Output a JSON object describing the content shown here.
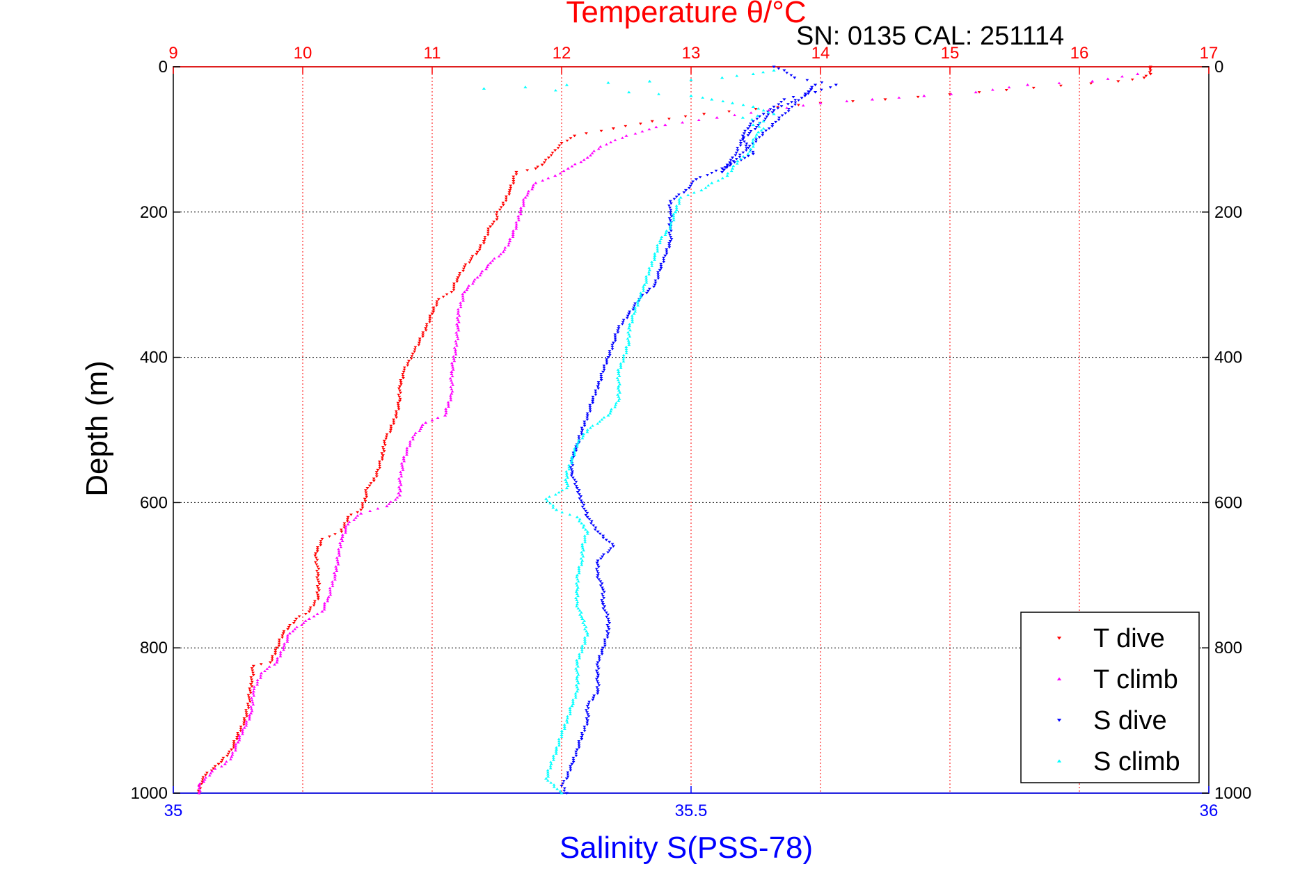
{
  "chart_data": {
    "type": "scatter",
    "title": "Temperature θ/°C",
    "subtitle": "SN: 0135  CAL: 251114",
    "xlabel": "Salinity S(PSS-78)",
    "ylabel": "Depth (m)",
    "y_reversed": true,
    "ylim": [
      0,
      1000
    ],
    "yticks": [
      "0",
      "200",
      "400",
      "600",
      "800",
      "1000"
    ],
    "x_top": {
      "label": "Temperature θ/°C",
      "lim": [
        9,
        17
      ],
      "ticks": [
        "9",
        "10",
        "11",
        "12",
        "13",
        "14",
        "15",
        "16",
        "17"
      ],
      "color": "#ff0000"
    },
    "x_bottom": {
      "label": "Salinity S(PSS-78)",
      "lim": [
        35,
        36
      ],
      "ticks": [
        "35",
        "35.5",
        "36"
      ],
      "color": "#0000ff"
    },
    "grid": true,
    "legend_position": "bottom-right",
    "series": [
      {
        "name": "T dive",
        "axis": "top",
        "color": "#ff0000",
        "marker": "triangle-down",
        "points": [
          [
            16.55,
            0
          ],
          [
            16.55,
            5
          ],
          [
            16.55,
            10
          ],
          [
            16.5,
            15
          ],
          [
            16.3,
            20
          ],
          [
            15.0,
            38
          ],
          [
            14.5,
            45
          ],
          [
            14.0,
            50
          ],
          [
            13.5,
            58
          ],
          [
            13.1,
            65
          ],
          [
            12.7,
            75
          ],
          [
            12.4,
            85
          ],
          [
            12.1,
            95
          ],
          [
            12.0,
            105
          ],
          [
            11.95,
            115
          ],
          [
            11.9,
            125
          ],
          [
            11.85,
            135
          ],
          [
            11.8,
            140
          ],
          [
            11.65,
            145
          ],
          [
            11.6,
            170
          ],
          [
            11.55,
            190
          ],
          [
            11.5,
            200
          ],
          [
            11.5,
            210
          ],
          [
            11.45,
            220
          ],
          [
            11.4,
            240
          ],
          [
            11.35,
            255
          ],
          [
            11.25,
            275
          ],
          [
            11.2,
            290
          ],
          [
            11.15,
            310
          ],
          [
            11.05,
            320
          ],
          [
            11.0,
            340
          ],
          [
            10.95,
            360
          ],
          [
            10.9,
            380
          ],
          [
            10.85,
            395
          ],
          [
            10.82,
            405
          ],
          [
            10.78,
            420
          ],
          [
            10.75,
            440
          ],
          [
            10.75,
            460
          ],
          [
            10.72,
            480
          ],
          [
            10.68,
            500
          ],
          [
            10.63,
            515
          ],
          [
            10.62,
            535
          ],
          [
            10.58,
            555
          ],
          [
            10.55,
            570
          ],
          [
            10.5,
            580
          ],
          [
            10.48,
            595
          ],
          [
            10.45,
            610
          ],
          [
            10.35,
            620
          ],
          [
            10.3,
            640
          ],
          [
            10.15,
            650
          ],
          [
            10.1,
            670
          ],
          [
            10.12,
            700
          ],
          [
            10.12,
            730
          ],
          [
            10.05,
            750
          ],
          [
            9.95,
            760
          ],
          [
            9.85,
            780
          ],
          [
            9.8,
            800
          ],
          [
            9.75,
            820
          ],
          [
            9.62,
            825
          ],
          [
            9.6,
            850
          ],
          [
            9.58,
            880
          ],
          [
            9.55,
            900
          ],
          [
            9.5,
            920
          ],
          [
            9.45,
            940
          ],
          [
            9.35,
            960
          ],
          [
            9.25,
            975
          ],
          [
            9.2,
            990
          ],
          [
            9.2,
            1000
          ]
        ]
      },
      {
        "name": "T climb",
        "axis": "top",
        "color": "#ff00ff",
        "marker": "triangle-up",
        "points": [
          [
            16.45,
            10
          ],
          [
            16.1,
            20
          ],
          [
            15.6,
            25
          ],
          [
            15.2,
            35
          ],
          [
            14.8,
            40
          ],
          [
            14.4,
            45
          ],
          [
            14.0,
            50
          ],
          [
            13.6,
            60
          ],
          [
            13.2,
            70
          ],
          [
            12.8,
            80
          ],
          [
            12.5,
            95
          ],
          [
            12.3,
            110
          ],
          [
            12.2,
            125
          ],
          [
            12.05,
            140
          ],
          [
            11.95,
            150
          ],
          [
            11.8,
            160
          ],
          [
            11.72,
            180
          ],
          [
            11.68,
            200
          ],
          [
            11.65,
            220
          ],
          [
            11.6,
            240
          ],
          [
            11.55,
            255
          ],
          [
            11.45,
            270
          ],
          [
            11.35,
            290
          ],
          [
            11.25,
            310
          ],
          [
            11.2,
            340
          ],
          [
            11.2,
            360
          ],
          [
            11.18,
            390
          ],
          [
            11.15,
            420
          ],
          [
            11.15,
            450
          ],
          [
            11.1,
            480
          ],
          [
            10.95,
            490
          ],
          [
            10.85,
            510
          ],
          [
            10.78,
            540
          ],
          [
            10.75,
            570
          ],
          [
            10.75,
            590
          ],
          [
            10.65,
            605
          ],
          [
            10.45,
            615
          ],
          [
            10.35,
            630
          ],
          [
            10.3,
            650
          ],
          [
            10.28,
            670
          ],
          [
            10.25,
            700
          ],
          [
            10.2,
            730
          ],
          [
            10.15,
            750
          ],
          [
            10.05,
            760
          ],
          [
            9.9,
            780
          ],
          [
            9.85,
            800
          ],
          [
            9.8,
            820
          ],
          [
            9.68,
            835
          ],
          [
            9.62,
            860
          ],
          [
            9.6,
            890
          ],
          [
            9.55,
            910
          ],
          [
            9.5,
            930
          ],
          [
            9.45,
            950
          ],
          [
            9.4,
            960
          ],
          [
            9.3,
            970
          ],
          [
            9.2,
            990
          ],
          [
            9.2,
            1000
          ]
        ]
      },
      {
        "name": "S dive",
        "axis": "bottom",
        "color": "#0000ff",
        "marker": "triangle-down",
        "points": [
          [
            35.58,
            0
          ],
          [
            35.59,
            5
          ],
          [
            35.6,
            15
          ],
          [
            35.64,
            25
          ],
          [
            35.62,
            35
          ],
          [
            35.59,
            45
          ],
          [
            35.58,
            55
          ],
          [
            35.57,
            65
          ],
          [
            35.56,
            75
          ],
          [
            35.555,
            85
          ],
          [
            35.55,
            95
          ],
          [
            35.548,
            105
          ],
          [
            35.545,
            115
          ],
          [
            35.54,
            125
          ],
          [
            35.535,
            135
          ],
          [
            35.53,
            145
          ],
          [
            35.62,
            25
          ],
          [
            35.61,
            40
          ],
          [
            35.58,
            60
          ],
          [
            35.565,
            80
          ],
          [
            35.55,
            100
          ],
          [
            35.56,
            120
          ],
          [
            35.53,
            140
          ],
          [
            35.505,
            155
          ],
          [
            35.495,
            170
          ],
          [
            35.48,
            185
          ],
          [
            35.48,
            200
          ],
          [
            35.48,
            220
          ],
          [
            35.48,
            240
          ],
          [
            35.475,
            260
          ],
          [
            35.47,
            280
          ],
          [
            35.465,
            300
          ],
          [
            35.45,
            320
          ],
          [
            35.44,
            340
          ],
          [
            35.43,
            360
          ],
          [
            35.425,
            380
          ],
          [
            35.42,
            400
          ],
          [
            35.415,
            420
          ],
          [
            35.41,
            440
          ],
          [
            35.405,
            460
          ],
          [
            35.4,
            480
          ],
          [
            35.395,
            500
          ],
          [
            35.39,
            520
          ],
          [
            35.385,
            540
          ],
          [
            35.385,
            560
          ],
          [
            35.39,
            580
          ],
          [
            35.395,
            600
          ],
          [
            35.4,
            620
          ],
          [
            35.41,
            640
          ],
          [
            35.425,
            660
          ],
          [
            35.41,
            680
          ],
          [
            35.41,
            700
          ],
          [
            35.415,
            720
          ],
          [
            35.415,
            740
          ],
          [
            35.42,
            760
          ],
          [
            35.42,
            780
          ],
          [
            35.415,
            800
          ],
          [
            35.41,
            820
          ],
          [
            35.41,
            840
          ],
          [
            35.41,
            860
          ],
          [
            35.4,
            880
          ],
          [
            35.4,
            900
          ],
          [
            35.395,
            920
          ],
          [
            35.39,
            940
          ],
          [
            35.385,
            960
          ],
          [
            35.38,
            980
          ],
          [
            35.375,
            990
          ],
          [
            35.38,
            1000
          ]
        ]
      },
      {
        "name": "S climb",
        "axis": "bottom",
        "color": "#00ffff",
        "marker": "triangle-up",
        "points": [
          [
            35.58,
            5
          ],
          [
            35.56,
            10
          ],
          [
            35.53,
            15
          ],
          [
            35.5,
            18
          ],
          [
            35.46,
            20
          ],
          [
            35.42,
            22
          ],
          [
            35.38,
            25
          ],
          [
            35.34,
            28
          ],
          [
            35.3,
            30
          ],
          [
            35.44,
            35
          ],
          [
            35.5,
            40
          ],
          [
            35.52,
            45
          ],
          [
            35.54,
            50
          ],
          [
            35.56,
            55
          ],
          [
            35.57,
            60
          ],
          [
            35.58,
            65
          ],
          [
            35.55,
            70
          ],
          [
            35.57,
            75
          ],
          [
            35.56,
            80
          ],
          [
            35.57,
            85
          ],
          [
            35.565,
            90
          ],
          [
            35.56,
            100
          ],
          [
            35.56,
            110
          ],
          [
            35.555,
            120
          ],
          [
            35.545,
            130
          ],
          [
            35.54,
            140
          ],
          [
            35.535,
            150
          ],
          [
            35.52,
            160
          ],
          [
            35.51,
            170
          ],
          [
            35.49,
            180
          ],
          [
            35.485,
            200
          ],
          [
            35.48,
            220
          ],
          [
            35.47,
            240
          ],
          [
            35.465,
            260
          ],
          [
            35.46,
            280
          ],
          [
            35.455,
            300
          ],
          [
            35.45,
            320
          ],
          [
            35.445,
            340
          ],
          [
            35.44,
            360
          ],
          [
            35.44,
            380
          ],
          [
            35.435,
            400
          ],
          [
            35.43,
            420
          ],
          [
            35.43,
            440
          ],
          [
            35.43,
            460
          ],
          [
            35.42,
            480
          ],
          [
            35.4,
            500
          ],
          [
            35.39,
            520
          ],
          [
            35.385,
            540
          ],
          [
            35.38,
            560
          ],
          [
            35.38,
            580
          ],
          [
            35.36,
            595
          ],
          [
            35.37,
            610
          ],
          [
            35.39,
            620
          ],
          [
            35.4,
            640
          ],
          [
            35.395,
            660
          ],
          [
            35.395,
            680
          ],
          [
            35.39,
            700
          ],
          [
            35.39,
            720
          ],
          [
            35.39,
            740
          ],
          [
            35.395,
            760
          ],
          [
            35.4,
            780
          ],
          [
            35.395,
            800
          ],
          [
            35.39,
            820
          ],
          [
            35.39,
            840
          ],
          [
            35.39,
            860
          ],
          [
            35.385,
            880
          ],
          [
            35.38,
            900
          ],
          [
            35.375,
            920
          ],
          [
            35.37,
            940
          ],
          [
            35.365,
            960
          ],
          [
            35.36,
            980
          ],
          [
            35.375,
            1000
          ]
        ]
      }
    ]
  }
}
